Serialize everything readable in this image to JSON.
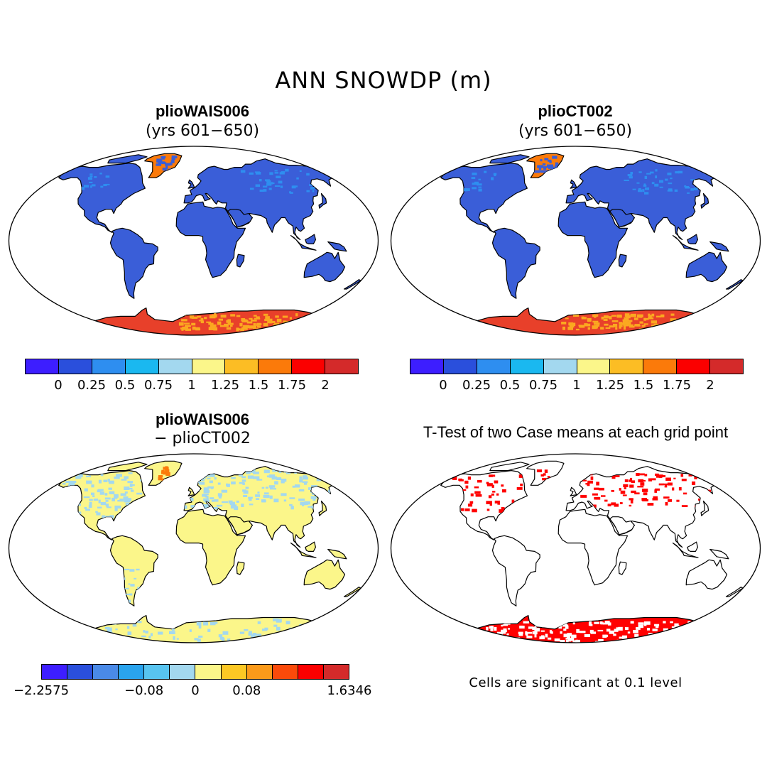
{
  "title": "ANN SNOWDP (m)",
  "panels": {
    "top_left": {
      "title": "plioWAIS006",
      "subtitle": "(yrs 601−650)"
    },
    "top_right": {
      "title": "plioCT002",
      "subtitle": "(yrs 601−650)"
    },
    "bottom_left": {
      "title": "plioWAIS006",
      "subtitle": "− plioCT002"
    },
    "bottom_right": {
      "title": "T-Test of two Case means at each grid point",
      "note": "Cells are significant at 0.1 level"
    }
  },
  "colorbar_abs": {
    "colors": [
      "#3d1eff",
      "#2a4fdc",
      "#2e8ef0",
      "#1ab8f0",
      "#a3d8ef",
      "#fbf68a",
      "#fcbd24",
      "#fb7a0a",
      "#fb0000",
      "#d42a2a"
    ],
    "ticks": [
      "0",
      "0.25",
      "0.5",
      "0.75",
      "1",
      "1.25",
      "1.5",
      "1.75",
      "2"
    ]
  },
  "colorbar_diff": {
    "colors": [
      "#3d1eff",
      "#2a4fdc",
      "#4a8ae8",
      "#2aa4ee",
      "#58c4f0",
      "#a3d8ef",
      "#fbf68a",
      "#fcc824",
      "#fb9a1a",
      "#fb4a0a",
      "#fb0000",
      "#d42a2a"
    ],
    "ticks": [
      "−2.2575",
      "−0.08",
      "0",
      "0.08",
      "1.6346"
    ]
  },
  "map_colors": {
    "land_abs": "#3a5ed8",
    "antarctica_abs": "#e8402a",
    "antarctica_abs_inner": "#fba820",
    "greenland_abs": "#fb7a0a",
    "land_diff": "#fbf68a",
    "diff_neg": "#a3d8ef",
    "signif": "#ff0000"
  }
}
